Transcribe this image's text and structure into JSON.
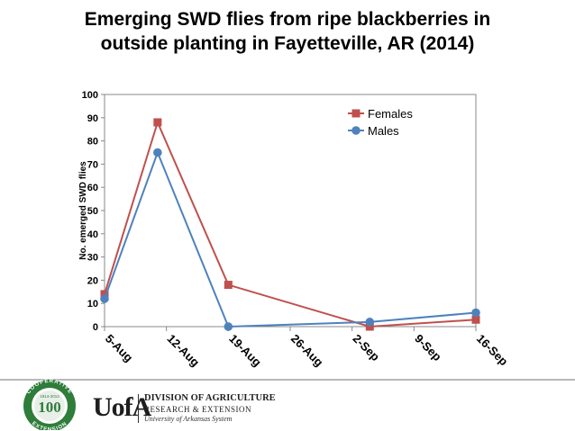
{
  "slide": {
    "title_line1": "Emerging SWD flies from ripe blackberries in",
    "title_line2": "outside planting in Fayetteville, AR (2014)"
  },
  "chart_data": {
    "type": "line",
    "title": "",
    "xlabel": "",
    "ylabel": "No. emerged SWD flies",
    "ylim": [
      0,
      100
    ],
    "y_ticks": [
      0,
      10,
      20,
      30,
      40,
      50,
      60,
      70,
      80,
      90,
      100
    ],
    "x_tick_labels": [
      "5-Aug",
      "12-Aug",
      "19-Aug",
      "26-Aug",
      "2-Sep",
      "9-Sep",
      "16-Sep"
    ],
    "x_tick_days": [
      0,
      7,
      14,
      21,
      28,
      35,
      42
    ],
    "x_range_days": [
      0,
      42
    ],
    "grid": false,
    "legend_position": "top-right",
    "series": [
      {
        "name": "Females",
        "color": "#c0504d",
        "marker": "square",
        "x_days": [
          0,
          6,
          14,
          30,
          42
        ],
        "values": [
          14,
          88,
          18,
          0,
          3
        ]
      },
      {
        "name": "Males",
        "color": "#4f81bd",
        "marker": "circle",
        "x_days": [
          0,
          6,
          14,
          30,
          42
        ],
        "values": [
          12,
          75,
          0,
          2,
          6
        ]
      }
    ]
  },
  "footer": {
    "seal_top_text": "COOPERATIVE",
    "seal_bottom_text": "EXTENSION",
    "seal_number": "100",
    "seal_years": "1914-2014",
    "ua_mark": "UofA",
    "division_line1": "DIVISION OF AGRICULTURE",
    "division_line2": "RESEARCH & EXTENSION",
    "division_line3": "University of Arkansas System"
  }
}
